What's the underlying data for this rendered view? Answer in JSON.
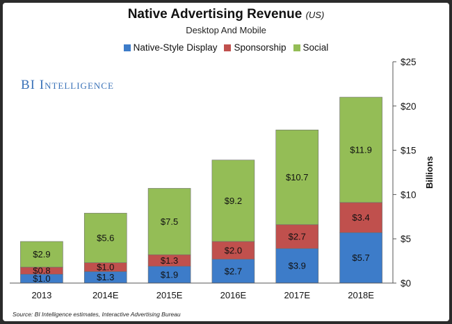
{
  "chart_data": {
    "type": "bar",
    "stacked": true,
    "title": "Native Advertising Revenue",
    "title_unit": "(US)",
    "subtitle": "Desktop And Mobile",
    "ylabel": "Billions",
    "ylim": [
      0,
      25
    ],
    "yticks": [
      0,
      5,
      10,
      15,
      20,
      25
    ],
    "ytick_labels": [
      "$0",
      "$5",
      "$10",
      "$15",
      "$20",
      "$25"
    ],
    "categories": [
      "2013",
      "2014E",
      "2015E",
      "2016E",
      "2017E",
      "2018E"
    ],
    "series": [
      {
        "name": "Native-Style Display",
        "color": "#3d7cc9",
        "values": [
          1.0,
          1.3,
          1.9,
          2.7,
          3.9,
          5.7
        ],
        "labels": [
          "$1.0",
          "$1.3",
          "$1.9",
          "$2.7",
          "$3.9",
          "$5.7"
        ]
      },
      {
        "name": "Sponsorship",
        "color": "#c0504d",
        "values": [
          0.8,
          1.0,
          1.3,
          2.0,
          2.7,
          3.4
        ],
        "labels": [
          "$0.8",
          "$1.0",
          "$1.3",
          "$2.0",
          "$2.7",
          "$3.4"
        ]
      },
      {
        "name": "Social",
        "color": "#94bd56",
        "values": [
          2.9,
          5.6,
          7.5,
          9.2,
          10.7,
          11.9
        ],
        "labels": [
          "$2.9",
          "$5.6",
          "$7.5",
          "$9.2",
          "$10.7",
          "$11.9"
        ]
      }
    ],
    "legend_position": "top-center",
    "grid": false
  },
  "brand": "BI Intelligence",
  "source": "Source: BI Intelligence estimates, Interactive Advertising Bureau"
}
